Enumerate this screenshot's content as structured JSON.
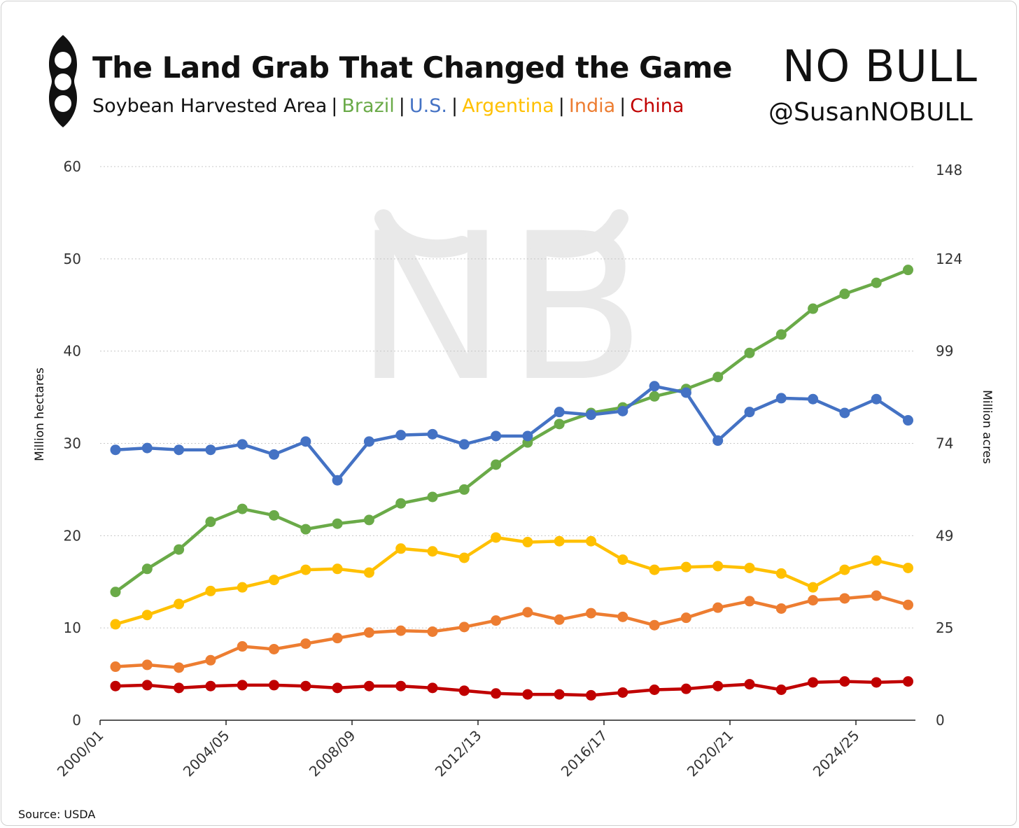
{
  "header": {
    "title": "The Land Grab That Changed the Game",
    "subtitle_prefix": "Soybean Harvested Area",
    "legend": [
      {
        "label": "Brazil",
        "color": "#6aaa48"
      },
      {
        "label": "U.S.",
        "color": "#4472c4"
      },
      {
        "label": "Argentina",
        "color": "#ffc000"
      },
      {
        "label": "India",
        "color": "#ed7d31"
      },
      {
        "label": "China",
        "color": "#c00000"
      }
    ]
  },
  "branding": {
    "logo_text": "NO BULL",
    "handle": "@SusanNOBULL",
    "watermark": "NB"
  },
  "footer": {
    "source": "Source: USDA"
  },
  "chart_data": {
    "type": "line",
    "title": "The Land Grab That Changed the Game",
    "subtitle": "Soybean Harvested Area",
    "ylabel": "Million hectares",
    "y2label": "Million acres",
    "ylim": [
      0,
      60
    ],
    "yticks": [
      "0",
      "10",
      "20",
      "30",
      "40",
      "50",
      "60"
    ],
    "y2ticks": [
      "0",
      "25",
      "49",
      "74",
      "99",
      "124",
      "148"
    ],
    "xtick_labels": [
      "2000/01",
      "2004/05",
      "2008/09",
      "2012/13",
      "2016/17",
      "2020/21",
      "2024/25"
    ],
    "x": [
      "2000/01",
      "2001/02",
      "2002/03",
      "2003/04",
      "2004/05",
      "2005/06",
      "2006/07",
      "2007/08",
      "2008/09",
      "2009/10",
      "2010/11",
      "2011/12",
      "2012/13",
      "2013/14",
      "2014/15",
      "2015/16",
      "2016/17",
      "2017/18",
      "2018/19",
      "2019/20",
      "2020/21",
      "2021/22",
      "2022/23",
      "2023/24",
      "2024/25",
      "2025/26"
    ],
    "grid": true,
    "series": [
      {
        "name": "Brazil",
        "color": "#6aaa48",
        "values": [
          13.9,
          16.4,
          18.5,
          21.5,
          22.9,
          22.2,
          20.7,
          21.3,
          21.7,
          23.5,
          24.2,
          25.0,
          27.7,
          30.1,
          32.1,
          33.3,
          33.9,
          35.1,
          35.9,
          37.2,
          39.8,
          41.8,
          44.6,
          46.2,
          47.4,
          48.8
        ]
      },
      {
        "name": "U.S.",
        "color": "#4472c4",
        "values": [
          29.3,
          29.5,
          29.3,
          29.3,
          29.9,
          28.8,
          30.2,
          26.0,
          30.2,
          30.9,
          31.0,
          29.9,
          30.8,
          30.8,
          33.4,
          33.1,
          33.5,
          36.2,
          35.5,
          30.3,
          33.4,
          34.9,
          34.8,
          33.3,
          34.8,
          32.5
        ]
      },
      {
        "name": "Argentina",
        "color": "#ffc000",
        "values": [
          10.4,
          11.4,
          12.6,
          14.0,
          14.4,
          15.2,
          16.3,
          16.4,
          16.0,
          18.6,
          18.3,
          17.6,
          19.8,
          19.3,
          19.4,
          19.4,
          17.4,
          16.3,
          16.6,
          16.7,
          16.5,
          15.9,
          14.4,
          16.3,
          17.3,
          16.5
        ]
      },
      {
        "name": "India",
        "color": "#ed7d31",
        "values": [
          5.8,
          6.0,
          5.7,
          6.5,
          8.0,
          7.7,
          8.3,
          8.9,
          9.5,
          9.7,
          9.6,
          10.1,
          10.8,
          11.7,
          10.9,
          11.6,
          11.2,
          10.3,
          11.1,
          12.2,
          12.9,
          12.1,
          13.0,
          13.2,
          13.5,
          12.5
        ]
      },
      {
        "name": "China",
        "color": "#c00000",
        "values": [
          3.7,
          3.8,
          3.5,
          3.7,
          3.8,
          3.8,
          3.7,
          3.5,
          3.7,
          3.7,
          3.5,
          3.2,
          2.9,
          2.8,
          2.8,
          2.7,
          3.0,
          3.3,
          3.4,
          3.7,
          3.9,
          3.3,
          4.1,
          4.2,
          4.1,
          4.2
        ]
      }
    ]
  }
}
